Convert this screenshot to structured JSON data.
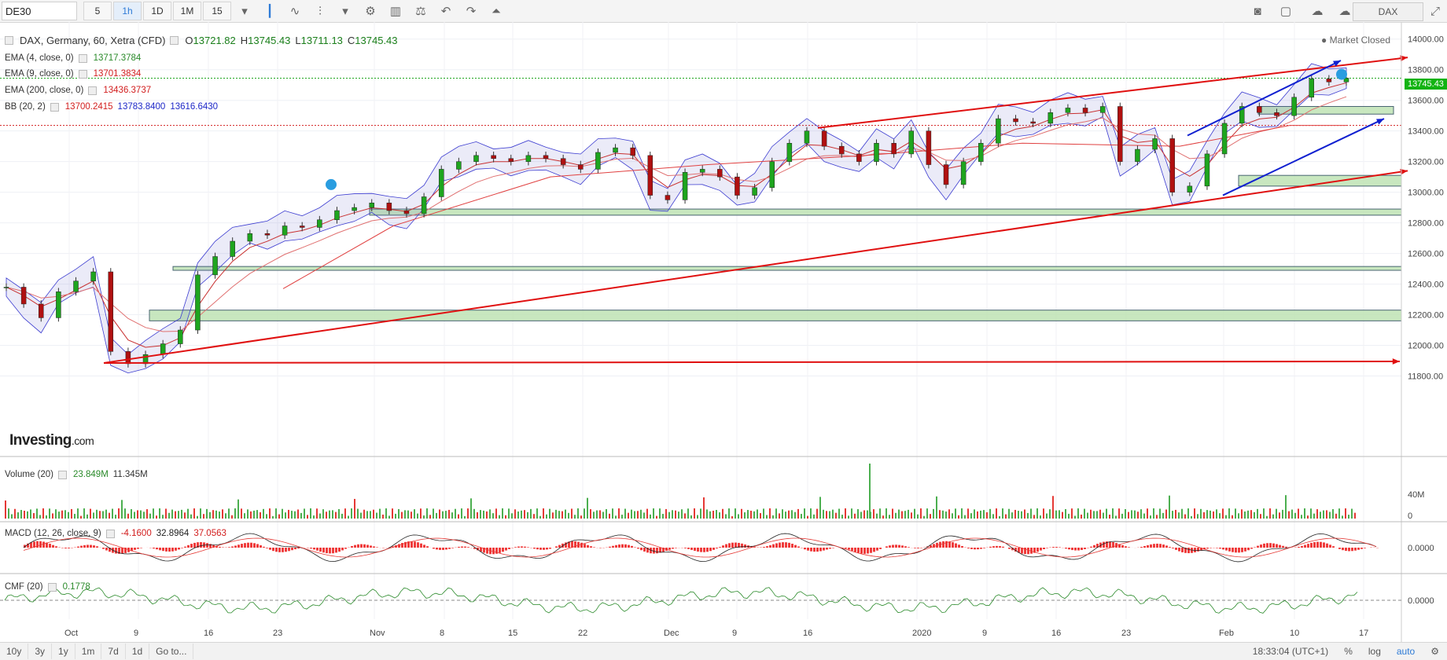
{
  "toolbar": {
    "symbol": "DE30",
    "intervals": [
      "5",
      "1h",
      "1D",
      "1M",
      "15"
    ],
    "active_interval": "1h",
    "symbol_right": "DAX",
    "icons": [
      "candles-icon",
      "line-chart-icon",
      "indicators-icon",
      "dropdown-icon",
      "settings-icon",
      "bar-chart-icon",
      "scale-icon",
      "undo-icon",
      "redo-icon",
      "alert-icon"
    ]
  },
  "legend": {
    "title": "DAX, Germany, 60, Xetra (CFD)",
    "open_label": "O",
    "open": "13721.82",
    "high_label": "H",
    "high": "13745.43",
    "low_label": "L",
    "low": "13711.13",
    "close_label": "C",
    "close": "13745.43",
    "ema4_label": "EMA (4, close, 0)",
    "ema4": "13717.3784",
    "ema9_label": "EMA (9, close, 0)",
    "ema9": "13701.3834",
    "ema200_label": "EMA (200, close, 0)",
    "ema200": "13436.3737",
    "bb_label": "BB (20, 2)",
    "bb_mid": "13700.2415",
    "bb_up": "13783.8400",
    "bb_low": "13616.6430",
    "market_status": "Market Closed",
    "last_price": "13745.43"
  },
  "watermark": {
    "brand": "Investing",
    "suffix": ".com"
  },
  "volume": {
    "label": "Volume (20)",
    "v1": "23.849M",
    "v2": "11.345M",
    "axis": [
      "40M",
      "0"
    ]
  },
  "macd": {
    "label": "MACD (12, 26, close, 9)",
    "v1": "-4.1600",
    "v2": "32.8964",
    "v3": "37.0563",
    "axis": [
      "0.0000"
    ]
  },
  "cmf": {
    "label": "CMF (20)",
    "v1": "0.1778",
    "axis": [
      "0.0000"
    ]
  },
  "bottom": {
    "ranges": [
      "10y",
      "3y",
      "1y",
      "1m",
      "7d",
      "1d",
      "Go to..."
    ],
    "time": "18:33:04 (UTC+1)",
    "percent": "%",
    "log": "log",
    "auto": "auto"
  },
  "colors": {
    "up": "#1ea51e",
    "down": "#b01010",
    "ema": "#e04040",
    "bb": "#3b3bd0",
    "zone": "#bfe3b4"
  },
  "chart_data": {
    "type": "line",
    "title": "DAX, Germany, 60, Xetra (CFD)",
    "ylim": [
      11700,
      14050
    ],
    "y_ticks": [
      11800,
      12000,
      12200,
      12400,
      12600,
      12800,
      13000,
      13200,
      13400,
      13600,
      13800,
      14000
    ],
    "x_ticks": [
      "Oct",
      "9",
      "16",
      "23",
      "Nov",
      "8",
      "15",
      "22",
      "Dec",
      "9",
      "16",
      "2020",
      "9",
      "16",
      "23",
      "Feb",
      "10",
      "17"
    ],
    "series": [
      {
        "name": "DAX",
        "points": [
          [
            "Sep 27",
            12380
          ],
          [
            "Sep 30",
            12270
          ],
          [
            "Oct 1",
            12180
          ],
          [
            "Oct 2",
            12350
          ],
          [
            "Oct 3",
            12420
          ],
          [
            "Oct 4",
            12480
          ],
          [
            "Oct 7",
            11960
          ],
          [
            "Oct 8",
            11880
          ],
          [
            "Oct 9",
            11940
          ],
          [
            "Oct 10",
            12010
          ],
          [
            "Oct 11",
            12100
          ],
          [
            "Oct 14",
            12460
          ],
          [
            "Oct 15",
            12580
          ],
          [
            "Oct 16",
            12680
          ],
          [
            "Oct 17",
            12730
          ],
          [
            "Oct 18",
            12720
          ],
          [
            "Oct 21",
            12780
          ],
          [
            "Oct 22",
            12770
          ],
          [
            "Oct 23",
            12820
          ],
          [
            "Oct 24",
            12880
          ],
          [
            "Oct 25",
            12900
          ],
          [
            "Oct 28",
            12930
          ],
          [
            "Oct 29",
            12880
          ],
          [
            "Oct 31",
            12860
          ],
          [
            "Nov 1",
            12970
          ],
          [
            "Nov 4",
            13150
          ],
          [
            "Nov 6",
            13200
          ],
          [
            "Nov 8",
            13240
          ],
          [
            "Nov 11",
            13220
          ],
          [
            "Nov 13",
            13200
          ],
          [
            "Nov 15",
            13240
          ],
          [
            "Nov 18",
            13220
          ],
          [
            "Nov 20",
            13180
          ],
          [
            "Nov 22",
            13150
          ],
          [
            "Nov 25",
            13260
          ],
          [
            "Nov 27",
            13290
          ],
          [
            "Nov 29",
            13240
          ],
          [
            "Dec 2",
            12980
          ],
          [
            "Dec 3",
            12950
          ],
          [
            "Dec 5",
            13130
          ],
          [
            "Dec 6",
            13150
          ],
          [
            "Dec 9",
            13100
          ],
          [
            "Dec 10",
            12980
          ],
          [
            "Dec 11",
            13030
          ],
          [
            "Dec 12",
            13200
          ],
          [
            "Dec 13",
            13320
          ],
          [
            "Dec 16",
            13400
          ],
          [
            "Dec 18",
            13300
          ],
          [
            "Dec 20",
            13250
          ],
          [
            "Dec 23",
            13200
          ],
          [
            "Dec 27",
            13320
          ],
          [
            "Dec 30",
            13250
          ],
          [
            "Jan 2",
            13400
          ],
          [
            "Jan 3",
            13180
          ],
          [
            "Jan 6",
            13050
          ],
          [
            "Jan 7",
            13200
          ],
          [
            "Jan 8",
            13320
          ],
          [
            "Jan 10",
            13480
          ],
          [
            "Jan 13",
            13460
          ],
          [
            "Jan 15",
            13450
          ],
          [
            "Jan 17",
            13520
          ],
          [
            "Jan 20",
            13550
          ],
          [
            "Jan 22",
            13520
          ],
          [
            "Jan 24",
            13560
          ],
          [
            "Jan 27",
            13200
          ],
          [
            "Jan 28",
            13280
          ],
          [
            "Jan 29",
            13350
          ],
          [
            "Jan 31",
            13000
          ],
          [
            "Feb 3",
            13040
          ],
          [
            "Feb 4",
            13250
          ],
          [
            "Feb 5",
            13450
          ],
          [
            "Feb 6",
            13560
          ],
          [
            "Feb 7",
            13520
          ],
          [
            "Feb 10",
            13500
          ],
          [
            "Feb 11",
            13620
          ],
          [
            "Feb 12",
            13740
          ],
          [
            "Feb 13",
            13720
          ],
          [
            "Feb 14",
            13745
          ]
        ]
      }
    ],
    "support_zones": [
      [
        12850,
        12890
      ],
      [
        12490,
        12515
      ],
      [
        12160,
        12230
      ],
      [
        13040,
        13110
      ],
      [
        13510,
        13560
      ]
    ],
    "horizontal_lines": [
      13745,
      13436
    ]
  }
}
